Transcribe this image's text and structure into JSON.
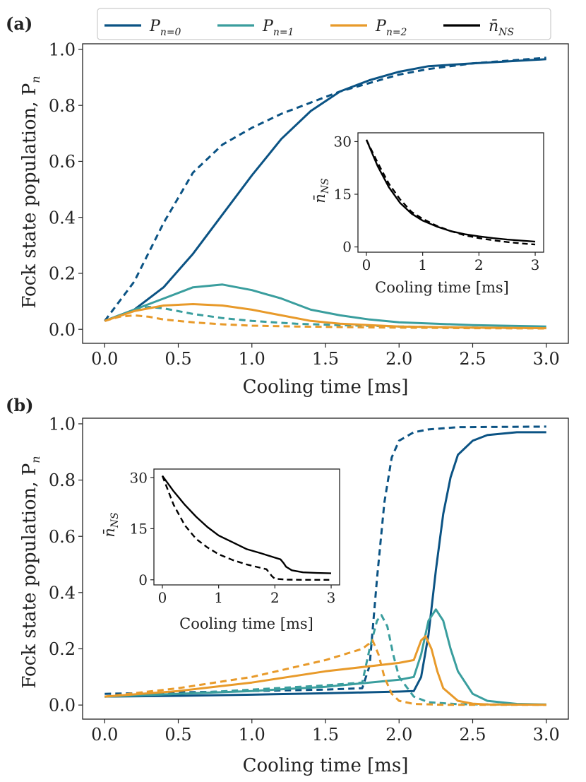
{
  "colors": {
    "n0": "#0b5384",
    "n1": "#3a9e9e",
    "n2": "#e89a2a",
    "nns": "#000000"
  },
  "legend": {
    "entries": [
      {
        "key": "n0",
        "symbol": "P",
        "subscript": "n=0"
      },
      {
        "key": "n1",
        "symbol": "P",
        "subscript": "n=1"
      },
      {
        "key": "n2",
        "symbol": "P",
        "subscript": "n=2"
      },
      {
        "key": "nns",
        "symbol": "n̄",
        "subscript": "NS"
      }
    ]
  },
  "chart_data": [
    {
      "type": "line",
      "panel_label": "(a)",
      "xlabel": "Cooling time [ms]",
      "ylabel": "Fock state population, P",
      "ylabel_sub": "n",
      "xlim": [
        -0.15,
        3.15
      ],
      "ylim": [
        -0.05,
        1.02
      ],
      "xticks": [
        "0.0",
        "0.5",
        "1.0",
        "1.5",
        "2.0",
        "2.5",
        "3.0"
      ],
      "yticks": [
        "0.0",
        "0.2",
        "0.4",
        "0.6",
        "0.8",
        "1.0"
      ],
      "series": [
        {
          "name": "P_{n=0}",
          "color_key": "n0",
          "dash": false,
          "x": [
            0,
            0.2,
            0.4,
            0.6,
            0.8,
            1.0,
            1.2,
            1.4,
            1.6,
            1.8,
            2.0,
            2.2,
            2.5,
            3.0
          ],
          "y": [
            0.03,
            0.07,
            0.15,
            0.27,
            0.41,
            0.55,
            0.68,
            0.78,
            0.85,
            0.89,
            0.92,
            0.94,
            0.95,
            0.965
          ]
        },
        {
          "name": "P_{n=0} (dashed)",
          "color_key": "n0",
          "dash": true,
          "x": [
            0,
            0.2,
            0.4,
            0.6,
            0.8,
            1.0,
            1.2,
            1.4,
            1.6,
            1.8,
            2.0,
            2.2,
            2.5,
            3.0
          ],
          "y": [
            0.03,
            0.17,
            0.38,
            0.56,
            0.66,
            0.72,
            0.77,
            0.81,
            0.85,
            0.88,
            0.91,
            0.93,
            0.95,
            0.97
          ]
        },
        {
          "name": "P_{n=1}",
          "color_key": "n1",
          "dash": false,
          "x": [
            0,
            0.2,
            0.4,
            0.6,
            0.8,
            1.0,
            1.2,
            1.4,
            1.6,
            1.8,
            2.0,
            2.5,
            3.0
          ],
          "y": [
            0.03,
            0.07,
            0.11,
            0.15,
            0.16,
            0.14,
            0.11,
            0.07,
            0.05,
            0.035,
            0.025,
            0.015,
            0.01
          ]
        },
        {
          "name": "P_{n=1} (dashed)",
          "color_key": "n1",
          "dash": true,
          "x": [
            0,
            0.2,
            0.3,
            0.4,
            0.6,
            0.8,
            1.0,
            1.3,
            1.6,
            2.0,
            2.5,
            3.0
          ],
          "y": [
            0.03,
            0.07,
            0.08,
            0.075,
            0.055,
            0.04,
            0.03,
            0.02,
            0.015,
            0.01,
            0.006,
            0.004
          ]
        },
        {
          "name": "P_{n=2}",
          "color_key": "n2",
          "dash": false,
          "x": [
            0,
            0.2,
            0.4,
            0.6,
            0.8,
            1.0,
            1.2,
            1.4,
            1.6,
            1.8,
            2.0,
            2.5,
            3.0
          ],
          "y": [
            0.03,
            0.065,
            0.085,
            0.09,
            0.085,
            0.07,
            0.05,
            0.03,
            0.02,
            0.015,
            0.01,
            0.006,
            0.004
          ]
        },
        {
          "name": "P_{n=2} (dashed)",
          "color_key": "n2",
          "dash": true,
          "x": [
            0,
            0.1,
            0.2,
            0.3,
            0.4,
            0.6,
            0.8,
            1.0,
            1.3,
            1.6,
            2.0,
            2.5,
            3.0
          ],
          "y": [
            0.03,
            0.045,
            0.05,
            0.045,
            0.035,
            0.025,
            0.018,
            0.013,
            0.01,
            0.008,
            0.006,
            0.004,
            0.003
          ]
        }
      ],
      "inset": {
        "xlabel": "Cooling time [ms]",
        "ylabel": "n̄",
        "ylabel_sub": "NS",
        "xlim": [
          -0.15,
          3.15
        ],
        "ylim": [
          -1.5,
          32.5
        ],
        "xticks": [
          "0",
          "1",
          "2",
          "3"
        ],
        "yticks": [
          "0",
          "15",
          "30"
        ],
        "series": [
          {
            "name": "n̄_NS",
            "color_key": "nns",
            "dash": false,
            "x": [
              0,
              0.2,
              0.4,
              0.6,
              0.8,
              1.0,
              1.25,
              1.5,
              1.75,
              2.0,
              2.25,
              2.5,
              2.75,
              3.0
            ],
            "y": [
              30.5,
              23,
              17,
              12.5,
              9.5,
              7.5,
              5.8,
              4.5,
              3.6,
              3.0,
              2.5,
              2.1,
              1.8,
              1.5
            ]
          },
          {
            "name": "n̄_NS (dashed)",
            "color_key": "nns",
            "dash": true,
            "x": [
              0,
              0.2,
              0.4,
              0.6,
              0.8,
              1.0,
              1.25,
              1.5,
              1.75,
              2.0,
              2.25,
              2.5,
              2.75,
              3.0
            ],
            "y": [
              30.5,
              24,
              18,
              13.5,
              10,
              8,
              6,
              4.5,
              3.3,
              2.5,
              1.9,
              1.4,
              1.0,
              0.7
            ]
          }
        ]
      }
    },
    {
      "type": "line",
      "panel_label": "(b)",
      "xlabel": "Cooling time [ms]",
      "ylabel": "Fock state population, P",
      "ylabel_sub": "n",
      "xlim": [
        -0.15,
        3.15
      ],
      "ylim": [
        -0.05,
        1.02
      ],
      "xticks": [
        "0.0",
        "0.5",
        "1.0",
        "1.5",
        "2.0",
        "2.5",
        "3.0"
      ],
      "yticks": [
        "0.0",
        "0.2",
        "0.4",
        "0.6",
        "0.8",
        "1.0"
      ],
      "series": [
        {
          "name": "P_{n=0}",
          "color_key": "n0",
          "dash": false,
          "x": [
            0,
            0.5,
            1.0,
            1.5,
            2.0,
            2.1,
            2.15,
            2.2,
            2.25,
            2.3,
            2.35,
            2.4,
            2.5,
            2.6,
            2.8,
            3.0
          ],
          "y": [
            0.03,
            0.033,
            0.037,
            0.042,
            0.048,
            0.05,
            0.1,
            0.25,
            0.48,
            0.68,
            0.81,
            0.89,
            0.94,
            0.96,
            0.97,
            0.97
          ]
        },
        {
          "name": "P_{n=0} (dashed)",
          "color_key": "n0",
          "dash": true,
          "x": [
            0,
            0.5,
            1.0,
            1.5,
            1.75,
            1.8,
            1.85,
            1.9,
            1.95,
            2.0,
            2.1,
            2.2,
            2.4,
            3.0
          ],
          "y": [
            0.04,
            0.045,
            0.05,
            0.055,
            0.06,
            0.14,
            0.45,
            0.72,
            0.88,
            0.94,
            0.97,
            0.98,
            0.988,
            0.99
          ]
        },
        {
          "name": "P_{n=1}",
          "color_key": "n1",
          "dash": false,
          "x": [
            0,
            0.5,
            1.0,
            1.5,
            2.0,
            2.1,
            2.15,
            2.2,
            2.25,
            2.3,
            2.35,
            2.4,
            2.5,
            2.6,
            2.8,
            3.0
          ],
          "y": [
            0.03,
            0.04,
            0.05,
            0.065,
            0.09,
            0.1,
            0.18,
            0.3,
            0.34,
            0.3,
            0.2,
            0.12,
            0.04,
            0.015,
            0.004,
            0.002
          ]
        },
        {
          "name": "P_{n=1} (dashed)",
          "color_key": "n1",
          "dash": true,
          "x": [
            0,
            0.5,
            1.0,
            1.5,
            1.75,
            1.8,
            1.85,
            1.88,
            1.92,
            1.96,
            2.0,
            2.1,
            2.2,
            2.4,
            3.0
          ],
          "y": [
            0.03,
            0.04,
            0.055,
            0.07,
            0.08,
            0.2,
            0.3,
            0.32,
            0.28,
            0.18,
            0.1,
            0.03,
            0.01,
            0.003,
            0.001
          ]
        },
        {
          "name": "P_{n=2}",
          "color_key": "n2",
          "dash": false,
          "x": [
            0,
            0.5,
            1.0,
            1.5,
            2.0,
            2.1,
            2.15,
            2.18,
            2.22,
            2.26,
            2.3,
            2.4,
            2.5,
            2.6,
            3.0
          ],
          "y": [
            0.03,
            0.05,
            0.08,
            0.12,
            0.15,
            0.16,
            0.23,
            0.245,
            0.2,
            0.12,
            0.06,
            0.015,
            0.005,
            0.002,
            0.001
          ]
        },
        {
          "name": "P_{n=2} (dashed)",
          "color_key": "n2",
          "dash": true,
          "x": [
            0,
            0.5,
            1.0,
            1.5,
            1.75,
            1.8,
            1.82,
            1.86,
            1.9,
            1.95,
            2.0,
            2.1,
            2.3,
            3.0
          ],
          "y": [
            0.03,
            0.06,
            0.1,
            0.16,
            0.2,
            0.22,
            0.23,
            0.18,
            0.1,
            0.04,
            0.015,
            0.004,
            0.001,
            0.001
          ]
        }
      ],
      "inset": {
        "xlabel": "Cooling time [ms]",
        "ylabel": "n̄",
        "ylabel_sub": "NS",
        "xlim": [
          -0.15,
          3.15
        ],
        "ylim": [
          -1.5,
          32.5
        ],
        "xticks": [
          "0",
          "1",
          "2",
          "3"
        ],
        "yticks": [
          "0",
          "15",
          "30"
        ],
        "series": [
          {
            "name": "n̄_NS",
            "color_key": "nns",
            "dash": false,
            "x": [
              0,
              0.2,
              0.4,
              0.6,
              0.8,
              1.0,
              1.25,
              1.5,
              1.75,
              2.0,
              2.1,
              2.15,
              2.2,
              2.3,
              2.5,
              2.75,
              3.0
            ],
            "y": [
              30.5,
              26,
              22,
              18.5,
              15.5,
              13,
              11,
              9,
              7.8,
              6.5,
              6.0,
              5.0,
              3.8,
              2.8,
              2.2,
              2.0,
              1.9
            ]
          },
          {
            "name": "n̄_NS (dashed)",
            "color_key": "nns",
            "dash": true,
            "x": [
              0,
              0.2,
              0.4,
              0.6,
              0.8,
              1.0,
              1.25,
              1.5,
              1.75,
              1.85,
              1.95,
              2.0,
              2.2,
              2.5,
              3.0
            ],
            "y": [
              30.5,
              22,
              16,
              12,
              9.5,
              7.5,
              5.8,
              4.5,
              3.5,
              3.1,
              1.0,
              0.3,
              0.05,
              0,
              0
            ]
          }
        ]
      }
    }
  ]
}
